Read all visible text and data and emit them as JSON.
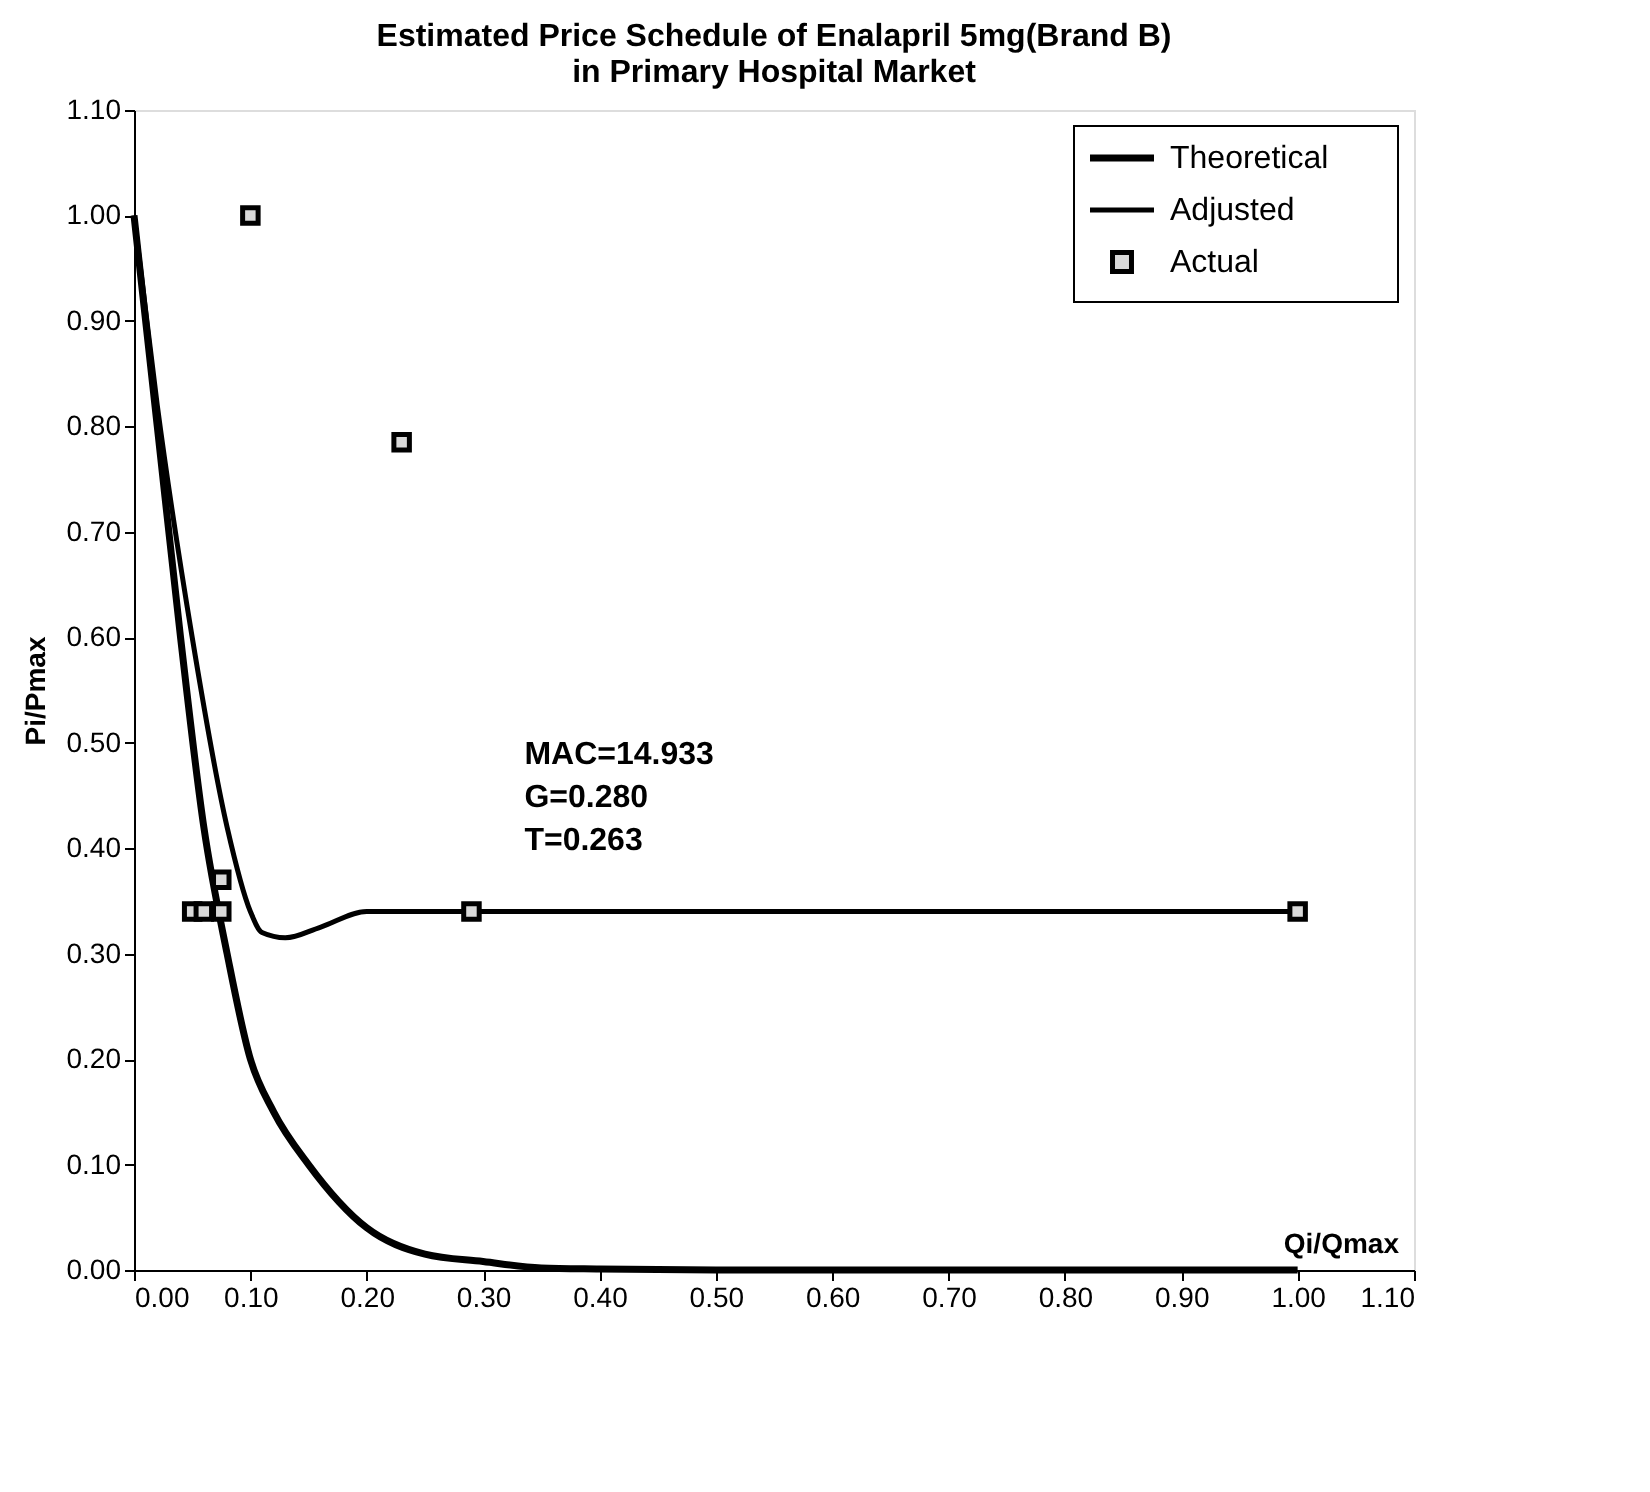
{
  "chart_data": {
    "type": "line",
    "title": [
      "Estimated Price Schedule of Enalapril 5mg(Brand B)",
      "in Primary Hospital Market"
    ],
    "xlabel": "Qi/Qmax",
    "ylabel": "Pi/Pmax",
    "xlim": [
      0,
      1.1
    ],
    "ylim": [
      0,
      1.1
    ],
    "xticks": [
      {
        "value": 0,
        "label": "0.00"
      },
      {
        "value": 0.1,
        "label": "0.10"
      },
      {
        "value": 0.2,
        "label": "0.20"
      },
      {
        "value": 0.3,
        "label": "0.30"
      },
      {
        "value": 0.4,
        "label": "0.40"
      },
      {
        "value": 0.5,
        "label": "0.50"
      },
      {
        "value": 0.6,
        "label": "0.60"
      },
      {
        "value": 0.7,
        "label": "0.70"
      },
      {
        "value": 0.8,
        "label": "0.80"
      },
      {
        "value": 0.9,
        "label": "0.90"
      },
      {
        "value": 1.0,
        "label": "1.00"
      },
      {
        "value": 1.1,
        "label": "1.10"
      }
    ],
    "yticks": [
      {
        "value": 0,
        "label": "0.00"
      },
      {
        "value": 0.1,
        "label": "0.10"
      },
      {
        "value": 0.2,
        "label": "0.20"
      },
      {
        "value": 0.3,
        "label": "0.30"
      },
      {
        "value": 0.4,
        "label": "0.40"
      },
      {
        "value": 0.5,
        "label": "0.50"
      },
      {
        "value": 0.6,
        "label": "0.60"
      },
      {
        "value": 0.7,
        "label": "0.70"
      },
      {
        "value": 0.8,
        "label": "0.80"
      },
      {
        "value": 0.9,
        "label": "0.90"
      },
      {
        "value": 1.0,
        "label": "1.00"
      },
      {
        "value": 1.1,
        "label": "1.10"
      }
    ],
    "grid": false,
    "legend": "top right",
    "series": [
      {
        "name": "Theoretical",
        "color": "#000000",
        "marker": "none",
        "line_style": "solid",
        "x": [
          0,
          0.02,
          0.04,
          0.06,
          0.08,
          0.1,
          0.12,
          0.15,
          0.2,
          0.25,
          0.3,
          0.35,
          0.4,
          0.5,
          1.0
        ],
        "values": [
          1.0,
          0.8,
          0.6,
          0.42,
          0.3,
          0.2,
          0.15,
          0.1,
          0.04,
          0.015,
          0.008,
          0.002,
          0.001,
          0,
          0
        ]
      },
      {
        "name": "Adjusted",
        "color": "#000000",
        "marker": "none",
        "line_style": "solid",
        "x": [
          0,
          0.02,
          0.05,
          0.08,
          0.1,
          0.11,
          0.13,
          0.16,
          0.2,
          1.0
        ],
        "values": [
          1.0,
          0.82,
          0.6,
          0.42,
          0.34,
          0.32,
          0.315,
          0.325,
          0.34,
          0.34
        ]
      },
      {
        "name": "Actual",
        "type": "scatter",
        "color": "#000000",
        "marker": "square",
        "x": [
          0.1,
          0.23,
          0.075,
          0.05,
          0.06,
          0.075,
          0.29,
          1.0
        ],
        "values": [
          1.0,
          0.785,
          0.37,
          0.34,
          0.34,
          0.34,
          0.34,
          0.34
        ]
      }
    ],
    "annotations": [
      "MAC=14.933",
      "G=0.280",
      "T=0.263"
    ]
  }
}
